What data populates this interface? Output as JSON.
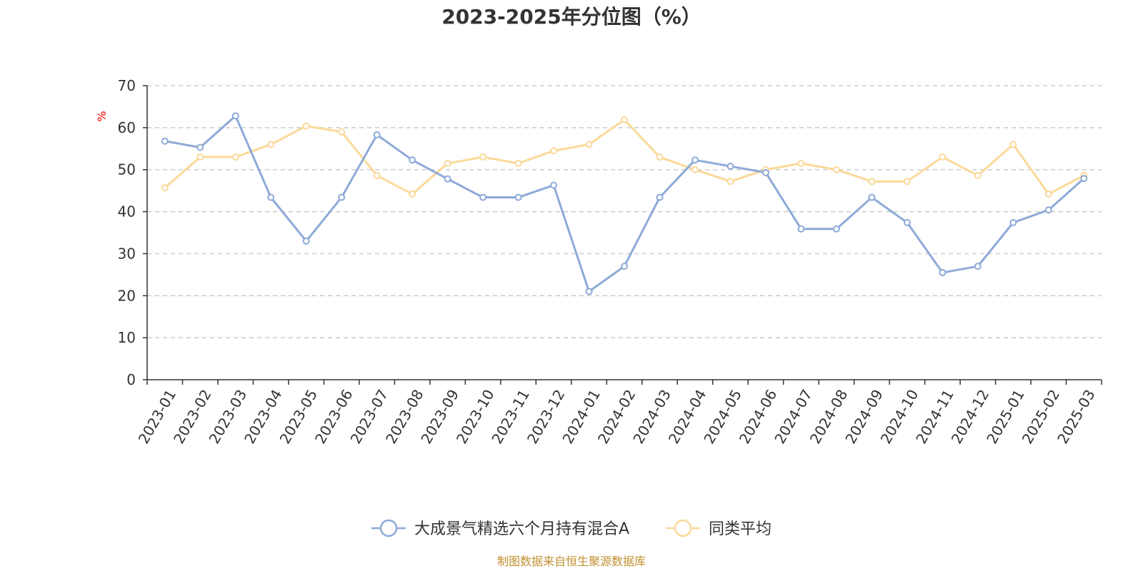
{
  "chart_data": {
    "type": "line",
    "title": "2023-2025年分位图（%）",
    "ylabel": "%",
    "ylim": [
      0,
      70
    ],
    "yticks": [
      0,
      10,
      20,
      30,
      40,
      50,
      60,
      70
    ],
    "grid": true,
    "legend_position": "bottom-center",
    "categories": [
      "2023-01",
      "2023-02",
      "2023-03",
      "2023-04",
      "2023-05",
      "2023-06",
      "2023-07",
      "2023-08",
      "2023-09",
      "2023-10",
      "2023-11",
      "2023-12",
      "2024-01",
      "2024-02",
      "2024-03",
      "2024-04",
      "2024-05",
      "2024-06",
      "2024-07",
      "2024-08",
      "2024-09",
      "2024-10",
      "2024-11",
      "2024-12",
      "2025-01",
      "2025-02",
      "2025-03"
    ],
    "series": [
      {
        "name": "大成景气精选六个月持有混合A",
        "color": "#8eaad8",
        "values": [
          56.8,
          55.3,
          62.8,
          43.4,
          33.0,
          43.4,
          58.3,
          52.3,
          47.8,
          43.4,
          43.4,
          46.3,
          21.0,
          27.0,
          43.4,
          52.3,
          50.8,
          49.3,
          35.9,
          35.9,
          43.4,
          37.4,
          25.5,
          27.0,
          37.4,
          40.4,
          47.9
        ]
      },
      {
        "name": "同类平均",
        "color": "#fbd99a",
        "values": [
          45.7,
          53.0,
          53.0,
          56.0,
          60.4,
          59.0,
          48.6,
          44.2,
          51.5,
          53.0,
          51.5,
          54.5,
          56.0,
          61.9,
          53.0,
          50.0,
          47.2,
          50.0,
          51.5,
          50.0,
          47.2,
          47.2,
          53.0,
          48.6,
          56.0,
          44.2,
          48.6
        ]
      }
    ],
    "source_note": "制图数据来自恒生聚源数据库"
  }
}
